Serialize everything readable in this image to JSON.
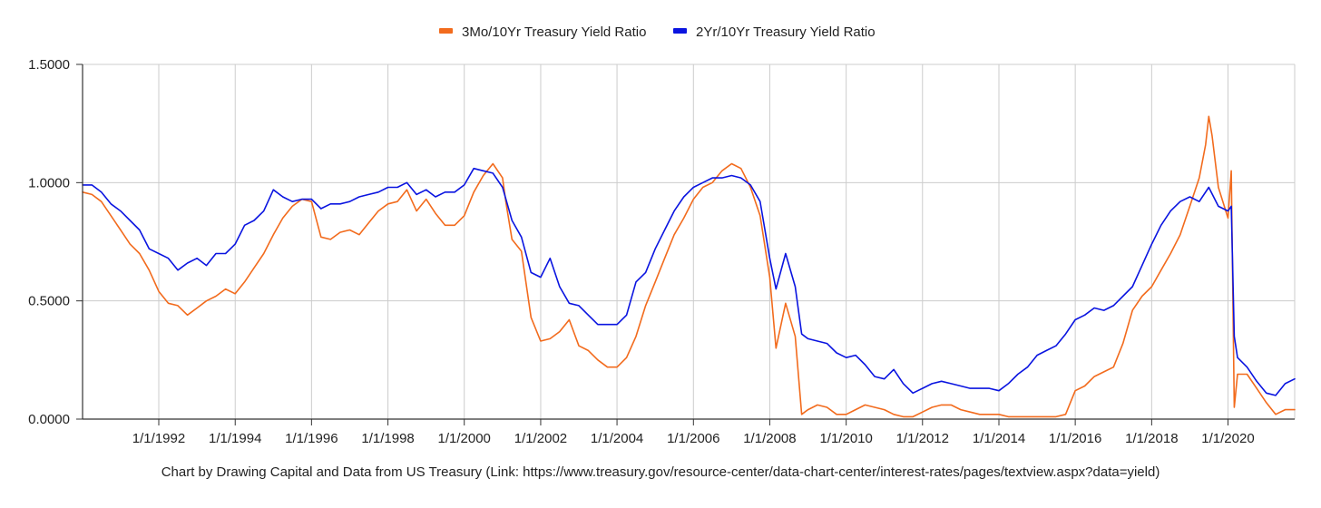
{
  "chart_data": {
    "type": "line",
    "title": "",
    "xlabel": "",
    "ylabel": "",
    "x_range": [
      "1990-01-02",
      "2021-09-30"
    ],
    "ylim": [
      0,
      1.5
    ],
    "y_ticks": [
      0.0,
      0.5,
      1.0,
      1.5
    ],
    "y_tick_labels": [
      "0.0000",
      "0.5000",
      "1.0000",
      "1.5000"
    ],
    "x_ticks": [
      "1992-01-01",
      "1994-01-01",
      "1996-01-01",
      "1998-01-01",
      "2000-01-01",
      "2002-01-01",
      "2004-01-01",
      "2006-01-01",
      "2008-01-01",
      "2010-01-01",
      "2012-01-01",
      "2014-01-01",
      "2016-01-01",
      "2018-01-01",
      "2020-01-01"
    ],
    "x_tick_labels": [
      "1/1/1992",
      "1/1/1994",
      "1/1/1996",
      "1/1/1998",
      "1/1/2000",
      "1/1/2002",
      "1/1/2004",
      "1/1/2006",
      "1/1/2008",
      "1/1/2010",
      "1/1/2012",
      "1/1/2014",
      "1/1/2016",
      "1/1/2018",
      "1/1/2020"
    ],
    "grid": true,
    "legend_position": "top-center",
    "series": [
      {
        "name": "3Mo/10Yr Treasury Yield Ratio",
        "color": "#f26b1d",
        "points": [
          [
            "1990-01-02",
            0.96
          ],
          [
            "1990-04-01",
            0.95
          ],
          [
            "1990-07-01",
            0.92
          ],
          [
            "1990-10-01",
            0.86
          ],
          [
            "1991-01-01",
            0.8
          ],
          [
            "1991-04-01",
            0.74
          ],
          [
            "1991-07-01",
            0.7
          ],
          [
            "1991-10-01",
            0.63
          ],
          [
            "1992-01-01",
            0.54
          ],
          [
            "1992-04-01",
            0.49
          ],
          [
            "1992-07-01",
            0.48
          ],
          [
            "1992-10-01",
            0.44
          ],
          [
            "1993-01-01",
            0.47
          ],
          [
            "1993-04-01",
            0.5
          ],
          [
            "1993-07-01",
            0.52
          ],
          [
            "1993-10-01",
            0.55
          ],
          [
            "1994-01-01",
            0.53
          ],
          [
            "1994-04-01",
            0.58
          ],
          [
            "1994-07-01",
            0.64
          ],
          [
            "1994-10-01",
            0.7
          ],
          [
            "1995-01-01",
            0.78
          ],
          [
            "1995-04-01",
            0.85
          ],
          [
            "1995-07-01",
            0.9
          ],
          [
            "1995-10-01",
            0.93
          ],
          [
            "1996-01-01",
            0.92
          ],
          [
            "1996-04-01",
            0.77
          ],
          [
            "1996-07-01",
            0.76
          ],
          [
            "1996-10-01",
            0.79
          ],
          [
            "1997-01-01",
            0.8
          ],
          [
            "1997-04-01",
            0.78
          ],
          [
            "1997-07-01",
            0.83
          ],
          [
            "1997-10-01",
            0.88
          ],
          [
            "1998-01-01",
            0.91
          ],
          [
            "1998-04-01",
            0.92
          ],
          [
            "1998-07-01",
            0.97
          ],
          [
            "1998-10-01",
            0.88
          ],
          [
            "1999-01-01",
            0.93
          ],
          [
            "1999-04-01",
            0.87
          ],
          [
            "1999-07-01",
            0.82
          ],
          [
            "1999-10-01",
            0.82
          ],
          [
            "2000-01-01",
            0.86
          ],
          [
            "2000-04-01",
            0.96
          ],
          [
            "2000-07-01",
            1.03
          ],
          [
            "2000-10-01",
            1.08
          ],
          [
            "2001-01-01",
            1.02
          ],
          [
            "2001-02-01",
            0.92
          ],
          [
            "2001-04-01",
            0.76
          ],
          [
            "2001-07-01",
            0.71
          ],
          [
            "2001-10-01",
            0.43
          ],
          [
            "2002-01-01",
            0.33
          ],
          [
            "2002-04-01",
            0.34
          ],
          [
            "2002-07-01",
            0.37
          ],
          [
            "2002-10-01",
            0.42
          ],
          [
            "2003-01-01",
            0.31
          ],
          [
            "2003-04-01",
            0.29
          ],
          [
            "2003-07-01",
            0.25
          ],
          [
            "2003-10-01",
            0.22
          ],
          [
            "2004-01-01",
            0.22
          ],
          [
            "2004-04-01",
            0.26
          ],
          [
            "2004-07-01",
            0.35
          ],
          [
            "2004-10-01",
            0.48
          ],
          [
            "2005-01-01",
            0.58
          ],
          [
            "2005-04-01",
            0.68
          ],
          [
            "2005-07-01",
            0.78
          ],
          [
            "2005-10-01",
            0.85
          ],
          [
            "2006-01-01",
            0.93
          ],
          [
            "2006-04-01",
            0.98
          ],
          [
            "2006-07-01",
            1.0
          ],
          [
            "2006-10-01",
            1.05
          ],
          [
            "2007-01-01",
            1.08
          ],
          [
            "2007-04-01",
            1.06
          ],
          [
            "2007-07-01",
            0.98
          ],
          [
            "2007-10-01",
            0.86
          ],
          [
            "2008-01-01",
            0.6
          ],
          [
            "2008-03-01",
            0.3
          ],
          [
            "2008-06-01",
            0.49
          ],
          [
            "2008-09-01",
            0.35
          ],
          [
            "2008-11-01",
            0.02
          ],
          [
            "2009-01-01",
            0.04
          ],
          [
            "2009-04-01",
            0.06
          ],
          [
            "2009-07-01",
            0.05
          ],
          [
            "2009-10-01",
            0.02
          ],
          [
            "2010-01-01",
            0.02
          ],
          [
            "2010-04-01",
            0.04
          ],
          [
            "2010-07-01",
            0.06
          ],
          [
            "2010-10-01",
            0.05
          ],
          [
            "2011-01-01",
            0.04
          ],
          [
            "2011-04-01",
            0.02
          ],
          [
            "2011-07-01",
            0.01
          ],
          [
            "2011-10-01",
            0.01
          ],
          [
            "2012-01-01",
            0.03
          ],
          [
            "2012-04-01",
            0.05
          ],
          [
            "2012-07-01",
            0.06
          ],
          [
            "2012-10-01",
            0.06
          ],
          [
            "2013-01-01",
            0.04
          ],
          [
            "2013-04-01",
            0.03
          ],
          [
            "2013-07-01",
            0.02
          ],
          [
            "2013-10-01",
            0.02
          ],
          [
            "2014-01-01",
            0.02
          ],
          [
            "2014-04-01",
            0.01
          ],
          [
            "2014-07-01",
            0.01
          ],
          [
            "2014-10-01",
            0.01
          ],
          [
            "2015-01-01",
            0.01
          ],
          [
            "2015-04-01",
            0.01
          ],
          [
            "2015-07-01",
            0.01
          ],
          [
            "2015-10-01",
            0.02
          ],
          [
            "2016-01-01",
            0.12
          ],
          [
            "2016-04-01",
            0.14
          ],
          [
            "2016-07-01",
            0.18
          ],
          [
            "2016-10-01",
            0.2
          ],
          [
            "2017-01-01",
            0.22
          ],
          [
            "2017-04-01",
            0.32
          ],
          [
            "2017-07-01",
            0.46
          ],
          [
            "2017-10-01",
            0.52
          ],
          [
            "2018-01-01",
            0.56
          ],
          [
            "2018-04-01",
            0.63
          ],
          [
            "2018-07-01",
            0.7
          ],
          [
            "2018-10-01",
            0.78
          ],
          [
            "2019-01-01",
            0.9
          ],
          [
            "2019-04-01",
            1.02
          ],
          [
            "2019-06-01",
            1.16
          ],
          [
            "2019-07-01",
            1.28
          ],
          [
            "2019-08-01",
            1.2
          ],
          [
            "2019-10-01",
            0.98
          ],
          [
            "2020-01-01",
            0.85
          ],
          [
            "2020-02-01",
            1.05
          ],
          [
            "2020-03-01",
            0.05
          ],
          [
            "2020-04-01",
            0.19
          ],
          [
            "2020-07-01",
            0.19
          ],
          [
            "2020-10-01",
            0.13
          ],
          [
            "2021-01-01",
            0.07
          ],
          [
            "2021-04-01",
            0.02
          ],
          [
            "2021-07-01",
            0.04
          ],
          [
            "2021-09-30",
            0.04
          ]
        ]
      },
      {
        "name": "2Yr/10Yr Treasury Yield Ratio",
        "color": "#0a14e0",
        "points": [
          [
            "1990-01-02",
            0.99
          ],
          [
            "1990-04-01",
            0.99
          ],
          [
            "1990-07-01",
            0.96
          ],
          [
            "1990-10-01",
            0.91
          ],
          [
            "1991-01-01",
            0.88
          ],
          [
            "1991-04-01",
            0.84
          ],
          [
            "1991-07-01",
            0.8
          ],
          [
            "1991-10-01",
            0.72
          ],
          [
            "1992-01-01",
            0.7
          ],
          [
            "1992-04-01",
            0.68
          ],
          [
            "1992-07-01",
            0.63
          ],
          [
            "1992-10-01",
            0.66
          ],
          [
            "1993-01-01",
            0.68
          ],
          [
            "1993-04-01",
            0.65
          ],
          [
            "1993-07-01",
            0.7
          ],
          [
            "1993-10-01",
            0.7
          ],
          [
            "1994-01-01",
            0.74
          ],
          [
            "1994-04-01",
            0.82
          ],
          [
            "1994-07-01",
            0.84
          ],
          [
            "1994-10-01",
            0.88
          ],
          [
            "1995-01-01",
            0.97
          ],
          [
            "1995-04-01",
            0.94
          ],
          [
            "1995-07-01",
            0.92
          ],
          [
            "1995-10-01",
            0.93
          ],
          [
            "1996-01-01",
            0.93
          ],
          [
            "1996-04-01",
            0.89
          ],
          [
            "1996-07-01",
            0.91
          ],
          [
            "1996-10-01",
            0.91
          ],
          [
            "1997-01-01",
            0.92
          ],
          [
            "1997-04-01",
            0.94
          ],
          [
            "1997-07-01",
            0.95
          ],
          [
            "1997-10-01",
            0.96
          ],
          [
            "1998-01-01",
            0.98
          ],
          [
            "1998-04-01",
            0.98
          ],
          [
            "1998-07-01",
            1.0
          ],
          [
            "1998-10-01",
            0.95
          ],
          [
            "1999-01-01",
            0.97
          ],
          [
            "1999-04-01",
            0.94
          ],
          [
            "1999-07-01",
            0.96
          ],
          [
            "1999-10-01",
            0.96
          ],
          [
            "2000-01-01",
            0.99
          ],
          [
            "2000-04-01",
            1.06
          ],
          [
            "2000-07-01",
            1.05
          ],
          [
            "2000-10-01",
            1.04
          ],
          [
            "2001-01-01",
            0.98
          ],
          [
            "2001-04-01",
            0.84
          ],
          [
            "2001-07-01",
            0.77
          ],
          [
            "2001-10-01",
            0.62
          ],
          [
            "2002-01-01",
            0.6
          ],
          [
            "2002-04-01",
            0.68
          ],
          [
            "2002-07-01",
            0.56
          ],
          [
            "2002-10-01",
            0.49
          ],
          [
            "2003-01-01",
            0.48
          ],
          [
            "2003-04-01",
            0.44
          ],
          [
            "2003-07-01",
            0.4
          ],
          [
            "2003-10-01",
            0.4
          ],
          [
            "2004-01-01",
            0.4
          ],
          [
            "2004-04-01",
            0.44
          ],
          [
            "2004-07-01",
            0.58
          ],
          [
            "2004-10-01",
            0.62
          ],
          [
            "2005-01-01",
            0.72
          ],
          [
            "2005-04-01",
            0.8
          ],
          [
            "2005-07-01",
            0.88
          ],
          [
            "2005-10-01",
            0.94
          ],
          [
            "2006-01-01",
            0.98
          ],
          [
            "2006-04-01",
            1.0
          ],
          [
            "2006-07-01",
            1.02
          ],
          [
            "2006-10-01",
            1.02
          ],
          [
            "2007-01-01",
            1.03
          ],
          [
            "2007-04-01",
            1.02
          ],
          [
            "2007-07-01",
            0.99
          ],
          [
            "2007-10-01",
            0.92
          ],
          [
            "2008-01-01",
            0.68
          ],
          [
            "2008-03-01",
            0.55
          ],
          [
            "2008-06-01",
            0.7
          ],
          [
            "2008-09-01",
            0.56
          ],
          [
            "2008-11-01",
            0.36
          ],
          [
            "2009-01-01",
            0.34
          ],
          [
            "2009-04-01",
            0.33
          ],
          [
            "2009-07-01",
            0.32
          ],
          [
            "2009-10-01",
            0.28
          ],
          [
            "2010-01-01",
            0.26
          ],
          [
            "2010-04-01",
            0.27
          ],
          [
            "2010-07-01",
            0.23
          ],
          [
            "2010-10-01",
            0.18
          ],
          [
            "2011-01-01",
            0.17
          ],
          [
            "2011-04-01",
            0.21
          ],
          [
            "2011-07-01",
            0.15
          ],
          [
            "2011-10-01",
            0.11
          ],
          [
            "2012-01-01",
            0.13
          ],
          [
            "2012-04-01",
            0.15
          ],
          [
            "2012-07-01",
            0.16
          ],
          [
            "2012-10-01",
            0.15
          ],
          [
            "2013-01-01",
            0.14
          ],
          [
            "2013-04-01",
            0.13
          ],
          [
            "2013-07-01",
            0.13
          ],
          [
            "2013-10-01",
            0.13
          ],
          [
            "2014-01-01",
            0.12
          ],
          [
            "2014-04-01",
            0.15
          ],
          [
            "2014-07-01",
            0.19
          ],
          [
            "2014-10-01",
            0.22
          ],
          [
            "2015-01-01",
            0.27
          ],
          [
            "2015-04-01",
            0.29
          ],
          [
            "2015-07-01",
            0.31
          ],
          [
            "2015-10-01",
            0.36
          ],
          [
            "2016-01-01",
            0.42
          ],
          [
            "2016-04-01",
            0.44
          ],
          [
            "2016-07-01",
            0.47
          ],
          [
            "2016-10-01",
            0.46
          ],
          [
            "2017-01-01",
            0.48
          ],
          [
            "2017-04-01",
            0.52
          ],
          [
            "2017-07-01",
            0.56
          ],
          [
            "2017-10-01",
            0.65
          ],
          [
            "2018-01-01",
            0.74
          ],
          [
            "2018-04-01",
            0.82
          ],
          [
            "2018-07-01",
            0.88
          ],
          [
            "2018-10-01",
            0.92
          ],
          [
            "2019-01-01",
            0.94
          ],
          [
            "2019-04-01",
            0.92
          ],
          [
            "2019-07-01",
            0.98
          ],
          [
            "2019-10-01",
            0.9
          ],
          [
            "2020-01-01",
            0.88
          ],
          [
            "2020-02-01",
            0.9
          ],
          [
            "2020-03-01",
            0.35
          ],
          [
            "2020-04-01",
            0.26
          ],
          [
            "2020-07-01",
            0.22
          ],
          [
            "2020-10-01",
            0.16
          ],
          [
            "2021-01-01",
            0.11
          ],
          [
            "2021-04-01",
            0.1
          ],
          [
            "2021-07-01",
            0.15
          ],
          [
            "2021-09-30",
            0.17
          ]
        ]
      }
    ]
  },
  "footer": {
    "caption": "Chart by Drawing Capital and Data from US Treasury (Link: https://www.treasury.gov/resource-center/data-chart-center/interest-rates/pages/textview.aspx?data=yield)"
  }
}
